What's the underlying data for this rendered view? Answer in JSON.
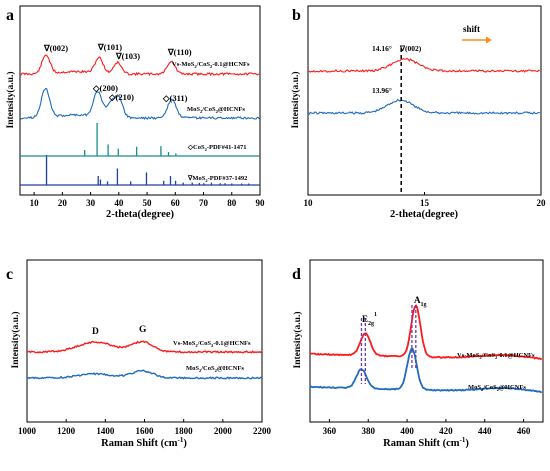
{
  "colors": {
    "red": "#ff1a1a",
    "blue": "#1f6bbf",
    "teal": "#1a8c8c",
    "navy": "#1f3fa8",
    "marker": "#1f4fbf",
    "arrow": "#ff8c1a",
    "dash_purple": "#6a3aa8"
  },
  "chart_data": [
    {
      "panel": "a",
      "type": "line",
      "xlabel": "2-theta(degree)",
      "ylabel": "Intensity(a.u.)",
      "xlim": [
        5,
        90
      ],
      "x_ticks": [
        "10",
        "20",
        "30",
        "40",
        "50",
        "60",
        "70",
        "80",
        "90"
      ],
      "series": [
        {
          "name": "Vs-MoS2/CoS2-0.1@HCNFs",
          "color": "red",
          "peaks": [
            {
              "x": 14.2,
              "h": 0.62
            },
            {
              "x": 33.0,
              "h": 0.52
            },
            {
              "x": 39.5,
              "h": 0.38
            },
            {
              "x": 58.5,
              "h": 0.42
            }
          ]
        },
        {
          "name": "MoS2/CoS2@HCNFs",
          "color": "blue",
          "peaks": [
            {
              "x": 14.0,
              "h": 0.72
            },
            {
              "x": 32.5,
              "h": 0.62
            },
            {
              "x": 37.0,
              "h": 0.3
            },
            {
              "x": 39.8,
              "h": 0.5
            },
            {
              "x": 58.8,
              "h": 0.46
            }
          ]
        }
      ],
      "reference_patterns": [
        {
          "name": "CoS2-PDF#41-1471",
          "color": "teal",
          "lines": [
            {
              "x": 27.9,
              "h": 0.18
            },
            {
              "x": 32.3,
              "h": 1.0
            },
            {
              "x": 36.2,
              "h": 0.35
            },
            {
              "x": 39.8,
              "h": 0.22
            },
            {
              "x": 46.3,
              "h": 0.28
            },
            {
              "x": 54.9,
              "h": 0.3
            },
            {
              "x": 57.6,
              "h": 0.12
            },
            {
              "x": 60.2,
              "h": 0.08
            }
          ]
        },
        {
          "name": "MoS2-PDF#37-1492",
          "color": "navy",
          "lines": [
            {
              "x": 14.4,
              "h": 1.0
            },
            {
              "x": 32.7,
              "h": 0.3
            },
            {
              "x": 33.5,
              "h": 0.18
            },
            {
              "x": 36.0,
              "h": 0.12
            },
            {
              "x": 39.5,
              "h": 0.55
            },
            {
              "x": 44.2,
              "h": 0.12
            },
            {
              "x": 49.8,
              "h": 0.42
            },
            {
              "x": 55.9,
              "h": 0.14
            },
            {
              "x": 58.3,
              "h": 0.3
            },
            {
              "x": 60.1,
              "h": 0.14
            },
            {
              "x": 62.8,
              "h": 0.08
            },
            {
              "x": 66.0,
              "h": 0.08
            },
            {
              "x": 68.5,
              "h": 0.07
            },
            {
              "x": 70.1,
              "h": 0.06
            },
            {
              "x": 72.8,
              "h": 0.08
            },
            {
              "x": 75.9,
              "h": 0.06
            },
            {
              "x": 77.6,
              "h": 0.06
            },
            {
              "x": 80.0,
              "h": 0.05
            },
            {
              "x": 83.5,
              "h": 0.05
            },
            {
              "x": 86.0,
              "h": 0.05
            }
          ]
        }
      ],
      "annotations": [
        "∇(002)",
        "∇(101)",
        "∇(103)",
        "∇(110)",
        "◇(200)",
        "◇(210)",
        "◇(311)"
      ]
    },
    {
      "panel": "b",
      "type": "line",
      "xlabel": "2-theta(degree)",
      "ylabel": "Intensity(a.u.)",
      "xlim": [
        10,
        20
      ],
      "x_ticks": [
        "10",
        "15",
        "20"
      ],
      "series": [
        {
          "name": "Vs-MoS2/CoS2-0.1@HCNFs",
          "color": "red",
          "peak_x": 14.16,
          "peak_label": "14.16°"
        },
        {
          "name": "MoS2/CoS2@HCNFs",
          "color": "blue",
          "peak_x": 13.96,
          "peak_label": "13.96°"
        }
      ],
      "annotations": [
        "∇(002)",
        "shift"
      ],
      "reference_line_x": 14.0
    },
    {
      "panel": "c",
      "type": "line",
      "xlabel": "Raman Shift (cm⁻¹)",
      "ylabel": "Intensity(a.u.)",
      "xlim": [
        1000,
        2200
      ],
      "x_ticks": [
        "1000",
        "1200",
        "1400",
        "1600",
        "1800",
        "2000",
        "2200"
      ],
      "series": [
        {
          "name": "Vs-MoS2/CoS2-0.1@HCNFs",
          "color": "red"
        },
        {
          "name": "MoS2/CoS2@HCNFs",
          "color": "blue"
        }
      ],
      "band_labels": [
        {
          "label": "D",
          "x": 1350
        },
        {
          "label": "G",
          "x": 1590
        }
      ]
    },
    {
      "panel": "d",
      "type": "line",
      "xlabel": "Raman Shift (cm⁻¹)",
      "ylabel": "Intensity(a.u.)",
      "xlim": [
        350,
        470
      ],
      "x_ticks": [
        "360",
        "380",
        "400",
        "420",
        "440",
        "460"
      ],
      "series": [
        {
          "name": "Vs-MoS2/CoS2-0.1@HCNFs",
          "color": "red",
          "peaks": [
            378.5,
            404.5
          ]
        },
        {
          "name": "MoS2/CoS2@HCNFs",
          "color": "blue",
          "peaks": [
            376.5,
            402.5
          ]
        }
      ],
      "peak_labels": [
        "E",
        "2g",
        "1",
        "A",
        "1g"
      ]
    }
  ],
  "panels": {
    "a": {
      "letter": "a",
      "ylabel": "Intensity(a.u.)",
      "xlabel": "2-theta(degree)",
      "legend_red": {
        "a": "Vs-MoS",
        "b": "2",
        "c": "/CoS",
        "d": "2",
        "e": "-0.1@HCNFs"
      },
      "legend_blue": {
        "a": "MoS",
        "b": "2",
        "c": "/CoS",
        "d": "2",
        "e": "@HCNFs"
      },
      "ref_cos2": {
        "a": "◇CoS",
        "b": "2",
        "c": "-PDF#41-1471"
      },
      "ref_mos2": {
        "a": "∇MoS",
        "b": "2",
        "c": "-PDF#37-1492"
      },
      "lbl_002": "∇(002)",
      "lbl_101": "∇(101)",
      "lbl_103": "∇(103)",
      "lbl_110": "∇(110)",
      "lbl_200": "◇(200)",
      "lbl_210": "◇(210)",
      "lbl_311": "◇(311)"
    },
    "b": {
      "letter": "b",
      "ylabel": "Intensity(a.u.)",
      "xlabel": "2-theta(degree)",
      "shift": "shift",
      "lbl_1416": "14.16°",
      "lbl_002": "∇(002)",
      "lbl_1396": "13.96°"
    },
    "c": {
      "letter": "c",
      "ylabel": "Intensity(a.u.)",
      "xlabel_a": "Raman Shift (cm",
      "xlabel_b": "-1",
      "xlabel_c": ")",
      "D": "D",
      "G": "G",
      "legend_red": {
        "a": "Vs-MoS",
        "b": "2",
        "c": "/CoS",
        "d": "2",
        "e": "-0.1@HCNFs"
      },
      "legend_blue": {
        "a": "MoS",
        "b": "2",
        "c": "/CoS",
        "d": "2",
        "e": "@HCNFs"
      }
    },
    "d": {
      "letter": "d",
      "ylabel": "Intensity(a.u.)",
      "xlabel_a": "Raman Shift (cm",
      "xlabel_b": "-1",
      "xlabel_c": ")",
      "E_main": "E",
      "E_sub": "2g",
      "E_sup": "1",
      "A_main": "A",
      "A_sub": "1g",
      "legend_red": {
        "a": "Vs-MoS",
        "b": "2",
        "c": "/CoS",
        "d": "2",
        "e": "-0.1@HCNFs"
      },
      "legend_blue": {
        "a": "MoS",
        "b": "2",
        "c": "/CoS",
        "d": "2",
        "e": "@HCNFs"
      }
    }
  }
}
